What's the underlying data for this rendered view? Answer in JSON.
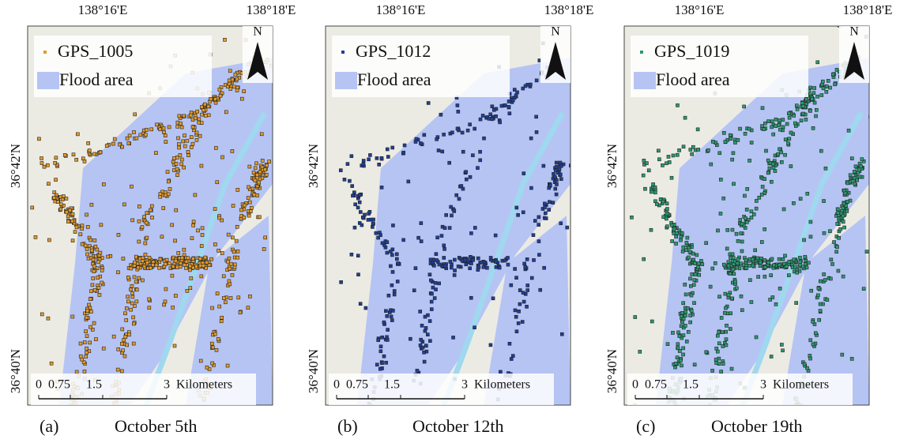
{
  "panels": [
    {
      "top_labels": [
        "138°16'E",
        "138°18'E"
      ],
      "left_labels": [
        "36°42'N",
        "36°40'N"
      ],
      "north": "N",
      "legend": {
        "points": "GPS_1005",
        "flood": "Flood area"
      },
      "scale_labels": [
        "0",
        "0.75",
        "1.5",
        "3",
        "Kilometers"
      ],
      "caption": {
        "label": "(a)",
        "text": "October 5th"
      },
      "point_color": "#e39b2a"
    },
    {
      "top_labels": [
        "138°16'E",
        "138°18'E"
      ],
      "left_labels": [
        "36°42'N",
        "36°40'N"
      ],
      "north": "N",
      "legend": {
        "points": "GPS_1012",
        "flood": "Flood area"
      },
      "scale_labels": [
        "0",
        "0.75",
        "1.5",
        "3",
        "Kilometers"
      ],
      "caption": {
        "label": "(b)",
        "text": "October 12th"
      },
      "point_color": "#1f3f9a"
    },
    {
      "top_labels": [
        "138°16'E",
        "138°18'E"
      ],
      "left_labels": [
        "36°42'N",
        "36°40'N"
      ],
      "north": "N",
      "legend": {
        "points": "GPS_1019",
        "flood": "Flood area"
      },
      "scale_labels": [
        "0",
        "0.75",
        "1.5",
        "3",
        "Kilometers"
      ],
      "caption": {
        "label": "(c)",
        "text": "October 19th"
      },
      "point_color": "#2a9a72"
    }
  ]
}
